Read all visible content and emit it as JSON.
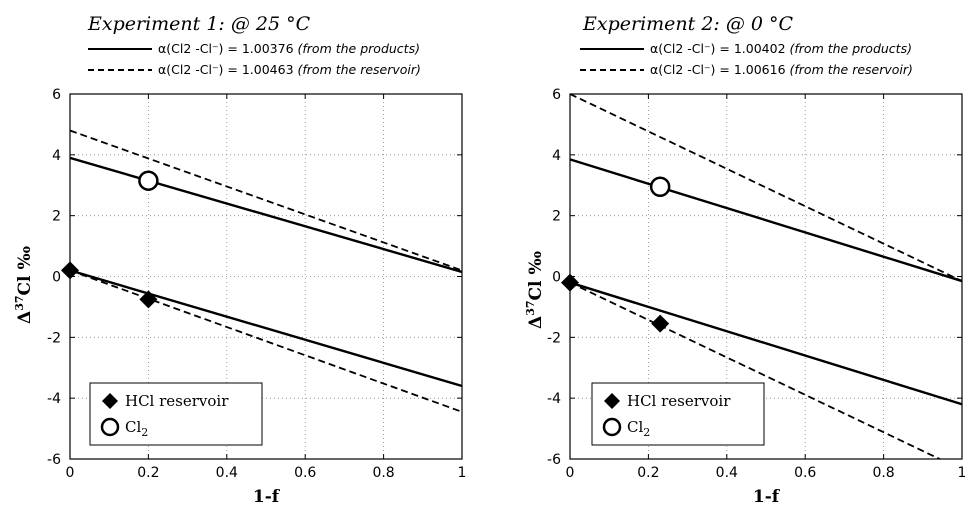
{
  "chart_data": [
    {
      "type": "scatter",
      "title": "Experiment 1: @ 25 °C",
      "xlabel": "1-f",
      "ylabel": "Δ37Cl ‰",
      "xlim": [
        0,
        1
      ],
      "ylim": [
        -6,
        6
      ],
      "x_ticks": [
        "0",
        "0.2",
        "0.4",
        "0.6",
        "0.8",
        "1"
      ],
      "y_ticks": [
        "6",
        "4",
        "2",
        "0",
        "-2",
        "-4",
        "-6"
      ],
      "grid": true,
      "lines": [
        {
          "name": "α(Cl2 -Cl⁻) = 1.00376",
          "note": "(from the products)",
          "style": "solid",
          "segments": [
            [
              [
                0,
                3.9
              ],
              [
                1,
                0.15
              ]
            ],
            [
              [
                0,
                0.2
              ],
              [
                1,
                -3.6
              ]
            ]
          ]
        },
        {
          "name": "α(Cl2 -Cl⁻) = 1.00463",
          "note": "(from the reservoir)",
          "style": "dashed",
          "segments": [
            [
              [
                0,
                4.8
              ],
              [
                1,
                0.2
              ]
            ],
            [
              [
                0,
                0.2
              ],
              [
                1,
                -4.45
              ]
            ]
          ]
        }
      ],
      "series": [
        {
          "name": "HCl reservoir",
          "marker": "diamond",
          "points": [
            [
              0,
              0.2
            ],
            [
              0.2,
              -0.75
            ]
          ]
        },
        {
          "name": "Cl2",
          "marker": "circle",
          "points": [
            [
              0.2,
              3.15
            ]
          ]
        }
      ]
    },
    {
      "type": "scatter",
      "title": "Experiment 2: @ 0 °C",
      "xlabel": "1-f",
      "ylabel": "Δ37Cl ‰",
      "xlim": [
        0,
        1
      ],
      "ylim": [
        -6,
        6
      ],
      "x_ticks": [
        "0",
        "0.2",
        "0.4",
        "0.6",
        "0.8",
        "1"
      ],
      "y_ticks": [
        "6",
        "4",
        "2",
        "0",
        "-2",
        "-4",
        "-6"
      ],
      "grid": true,
      "lines": [
        {
          "name": "α(Cl2 -Cl⁻) = 1.00402",
          "note": "(from the products)",
          "style": "solid",
          "segments": [
            [
              [
                0,
                3.85
              ],
              [
                1,
                -0.15
              ]
            ],
            [
              [
                0,
                -0.2
              ],
              [
                1,
                -4.2
              ]
            ]
          ]
        },
        {
          "name": "α(Cl2 -Cl⁻) = 1.00616",
          "note": "(from the reservoir)",
          "style": "dashed",
          "segments": [
            [
              [
                0,
                6.0
              ],
              [
                1,
                -0.15
              ]
            ],
            [
              [
                0,
                -0.2
              ],
              [
                1,
                -6.35
              ]
            ]
          ]
        }
      ],
      "series": [
        {
          "name": "HCl reservoir",
          "marker": "diamond",
          "points": [
            [
              0,
              -0.2
            ],
            [
              0.23,
              -1.55
            ]
          ]
        },
        {
          "name": "Cl2",
          "marker": "circle",
          "points": [
            [
              0.23,
              2.95
            ]
          ]
        }
      ]
    }
  ]
}
